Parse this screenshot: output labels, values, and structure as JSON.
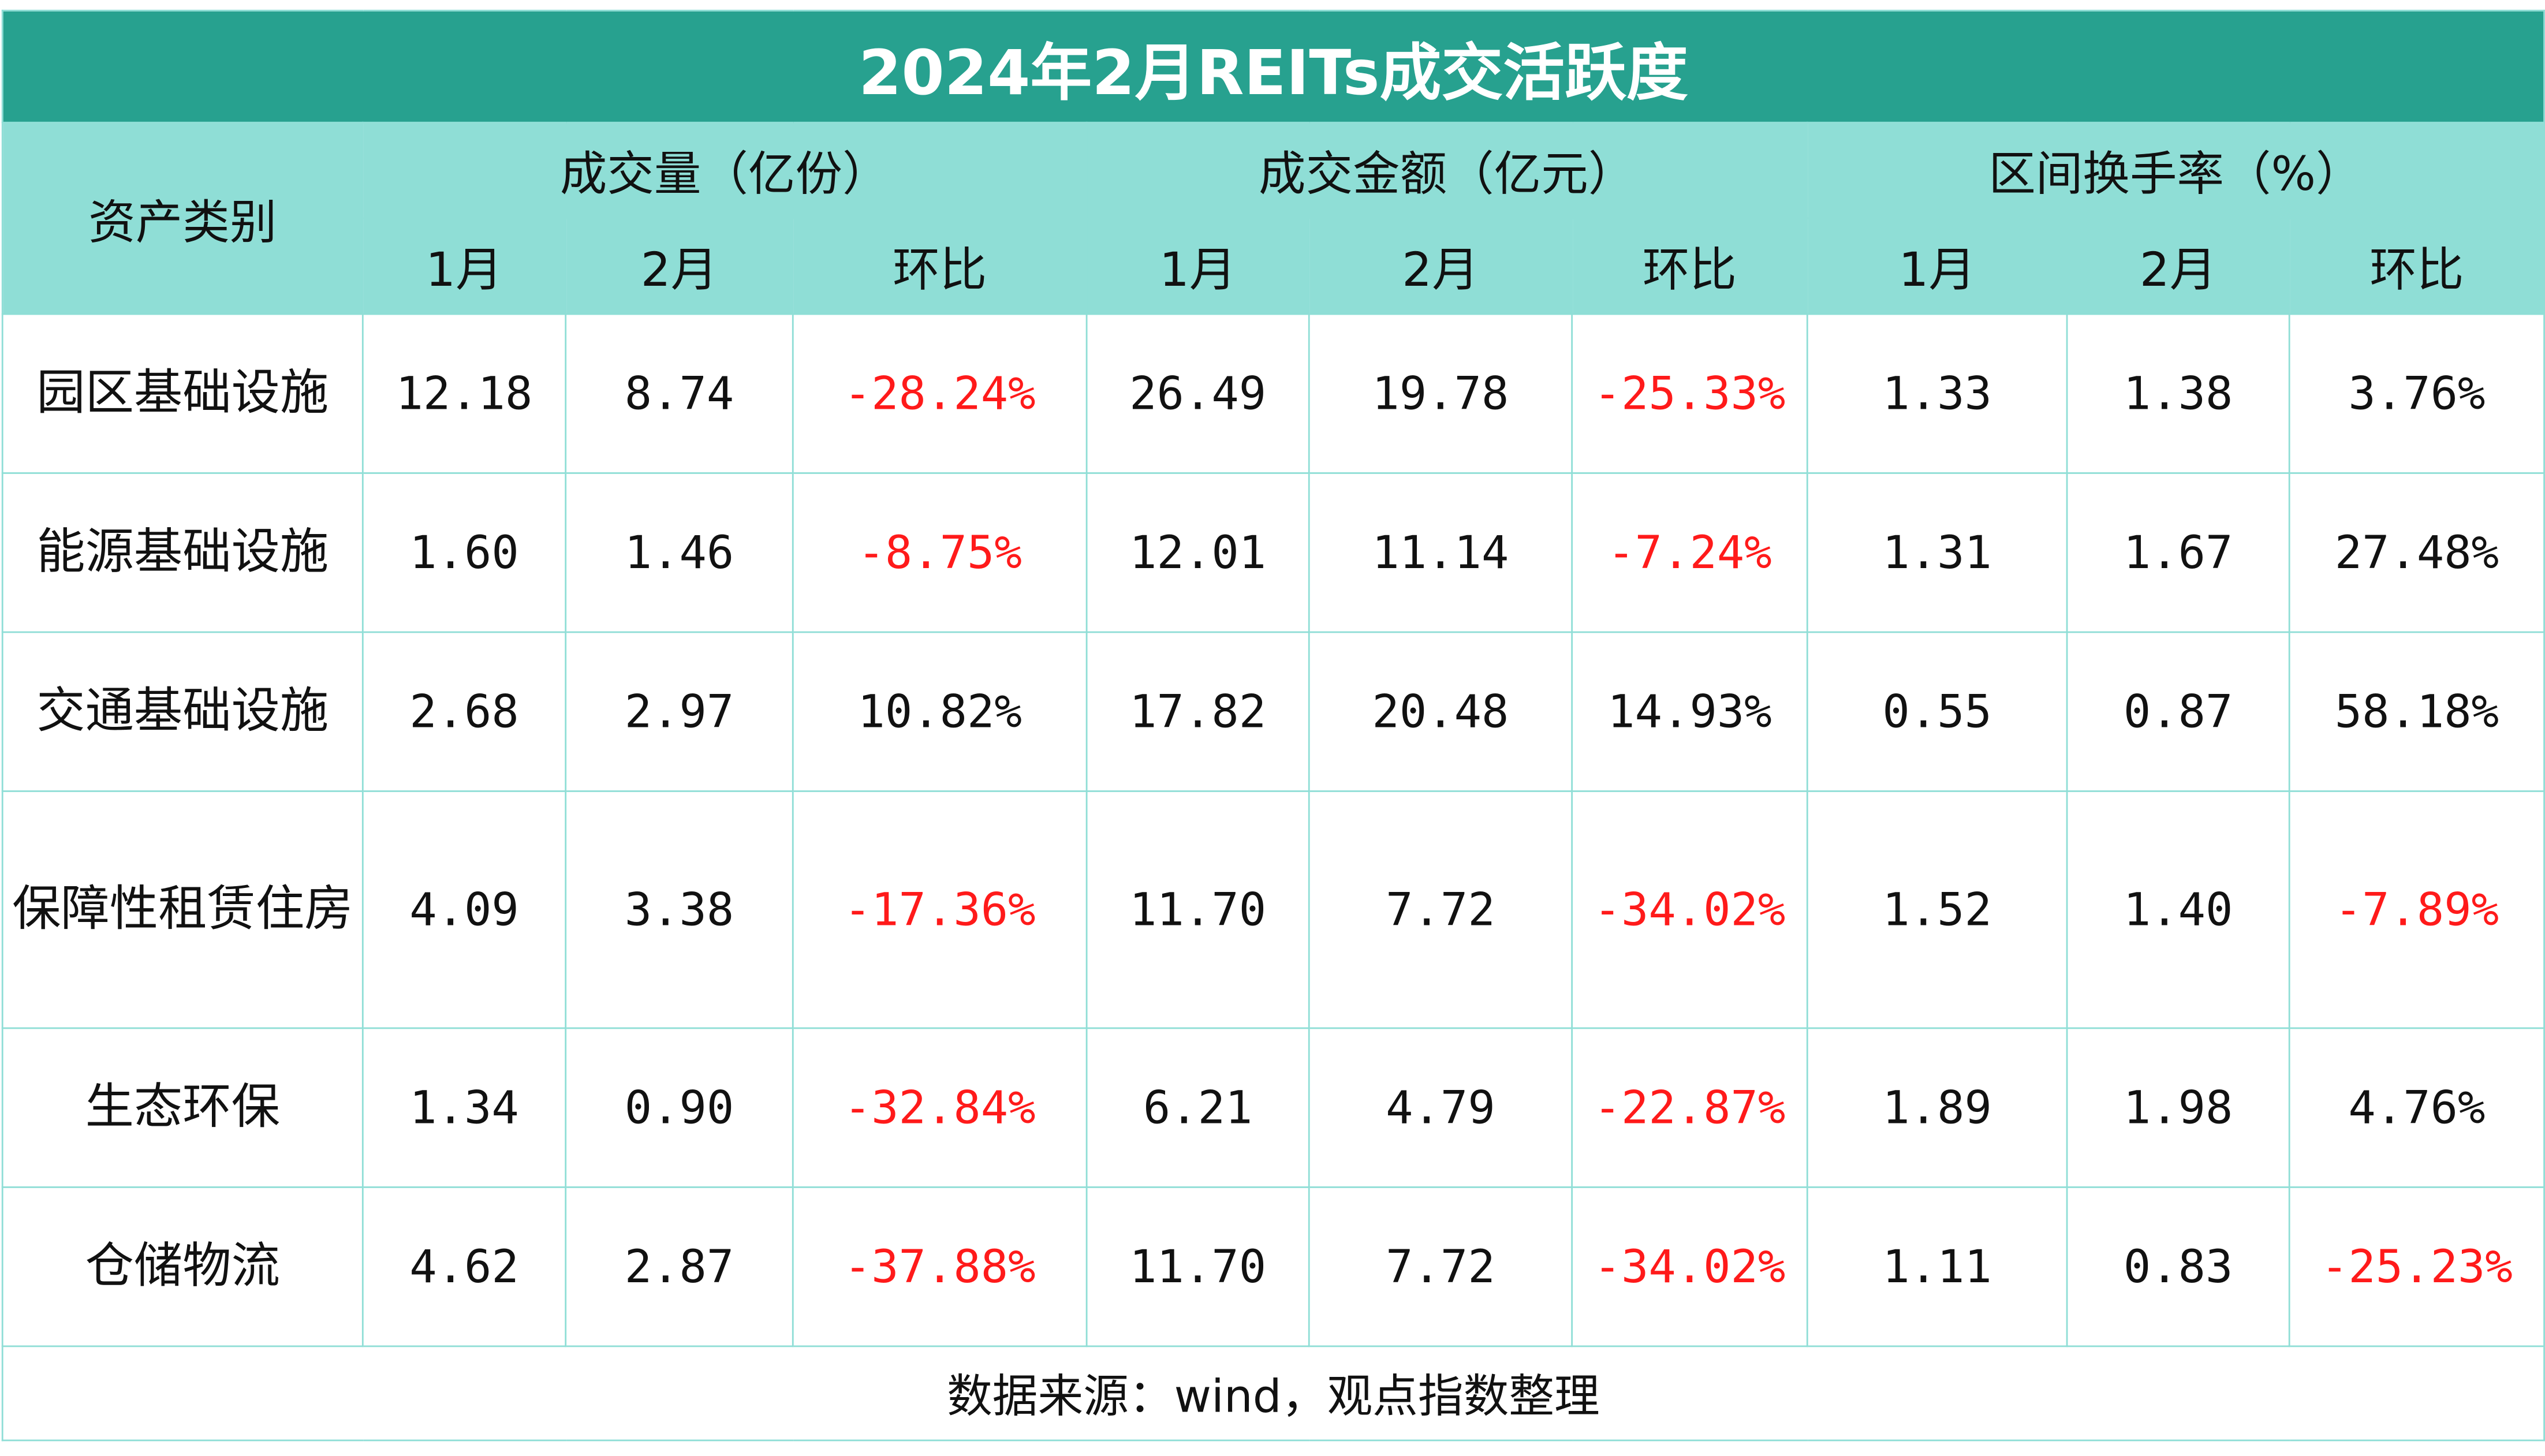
{
  "header": {
    "title": "2024年2月REITs成交活跃度"
  },
  "table": {
    "category_header": "资产类别",
    "groups": [
      "成交量（亿份）",
      "成交金额（亿元）",
      "区间换手率（%）"
    ],
    "subheaders": [
      [
        "1月",
        "2月",
        "环比"
      ],
      [
        "1月",
        "2月",
        "环比"
      ],
      [
        "1月",
        "2月",
        "环比"
      ]
    ],
    "rows": [
      [
        "园区基础设施",
        "12.18",
        "8.74",
        "-28.24%",
        "26.49",
        "19.78",
        "-25.33%",
        "1.33",
        "1.38",
        "3.76%"
      ],
      [
        "能源基础设施",
        "1.60",
        "1.46",
        "-8.75%",
        "12.01",
        "11.14",
        "-7.24%",
        "1.31",
        "1.67",
        "27.48%"
      ],
      [
        "交通基础设施",
        "2.68",
        "2.97",
        "10.82%",
        "17.82",
        "20.48",
        "14.93%",
        "0.55",
        "0.87",
        "58.18%"
      ],
      [
        "保障性租赁住房",
        "4.09",
        "3.38",
        "-17.36%",
        "11.70",
        "7.72",
        "-34.02%",
        "1.52",
        "1.40",
        "-7.89%"
      ],
      [
        "生态环保",
        "1.34",
        "0.90",
        "-32.84%",
        "6.21",
        "4.79",
        "-22.87%",
        "1.89",
        "1.98",
        "4.76%"
      ],
      [
        "仓储物流",
        "4.62",
        "2.87",
        "-37.88%",
        "11.70",
        "7.72",
        "-34.02%",
        "1.11",
        "0.83",
        "-25.23%"
      ]
    ]
  },
  "footer": {
    "source": "数据来源：wind，观点指数整理"
  }
}
